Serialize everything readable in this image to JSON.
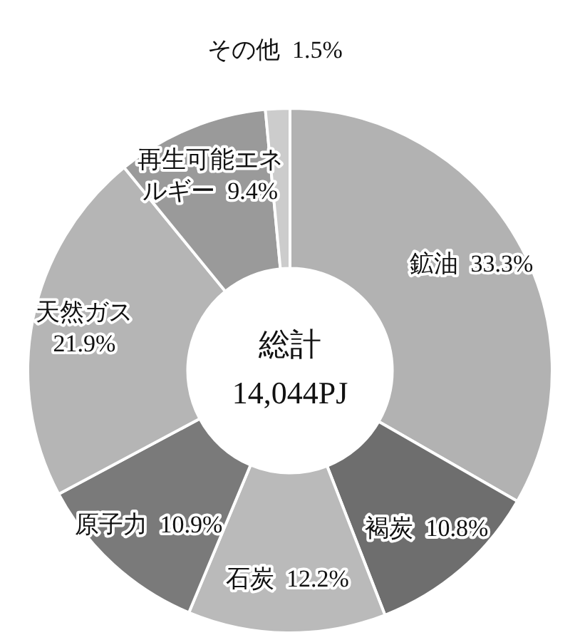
{
  "chart_data": {
    "type": "donut",
    "categories": [
      "鉱油",
      "褐炭",
      "石炭",
      "原子力",
      "天然ガス",
      "再生可能エネルギー",
      "その他"
    ],
    "values": [
      33.3,
      10.8,
      12.2,
      10.9,
      21.9,
      9.4,
      1.5
    ],
    "value_labels": [
      "33.3%",
      "10.8%",
      "12.2%",
      "10.9%",
      "21.9%",
      "9.4%",
      "1.5%"
    ],
    "colors": [
      "#b2b2b2",
      "#6e6e6e",
      "#bababa",
      "#7a7a7a",
      "#b5b5b5",
      "#9a9a9a",
      "#cccccc"
    ],
    "annotations": [
      "総計",
      "14,044PJ"
    ],
    "legend": false
  }
}
